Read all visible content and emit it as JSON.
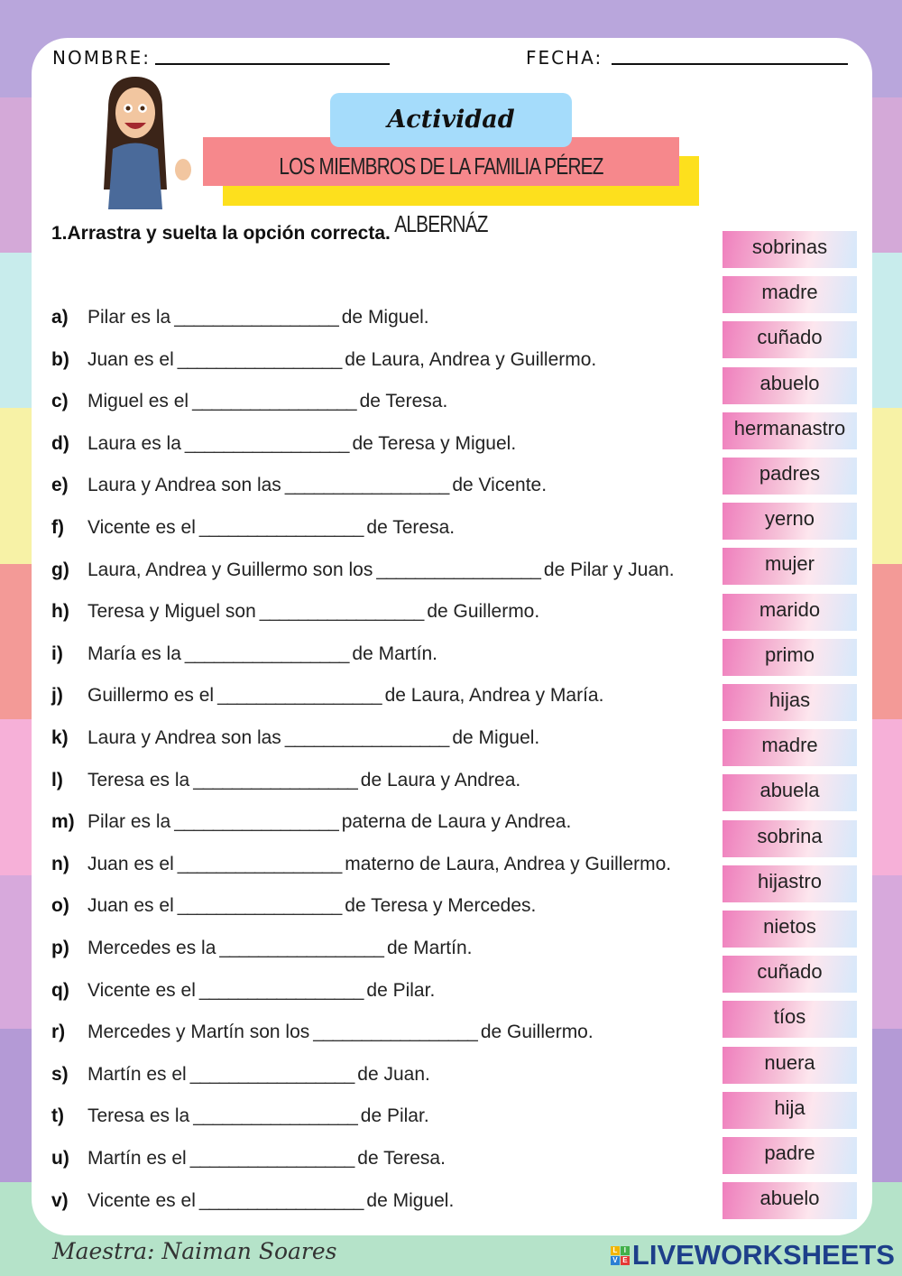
{
  "header": {
    "name_label": "NOMBRE:",
    "date_label": "FECHA:"
  },
  "title": {
    "badge": "Actividad",
    "main": "LOS MIEMBROS DE LA FAMILIA PÉREZ ALBERNÁZ"
  },
  "instruction": "1.Arrastra y suelta la opción correcta.",
  "blank": "_________________",
  "questions": [
    {
      "letter": "a)",
      "before": "Pilar es la",
      "after": "de Miguel."
    },
    {
      "letter": "b)",
      "before": "Juan es el",
      "after": "de Laura, Andrea y Guillermo."
    },
    {
      "letter": "c)",
      "before": "Miguel es el",
      "after": "de Teresa."
    },
    {
      "letter": "d)",
      "before": "Laura es la",
      "after": "de Teresa y Miguel."
    },
    {
      "letter": "e)",
      "before": "Laura y Andrea son las",
      "after": "de Vicente."
    },
    {
      "letter": "f)",
      "before": "Vicente es el",
      "after": "de Teresa."
    },
    {
      "letter": "g)",
      "before": "Laura, Andrea y Guillermo son los",
      "after": "de Pilar y Juan."
    },
    {
      "letter": "h)",
      "before": "Teresa y Miguel son",
      "after": "de Guillermo."
    },
    {
      "letter": "i)",
      "before": "María es la",
      "after": "de Martín."
    },
    {
      "letter": "j)",
      "before": "Guillermo es el",
      "after": "de Laura, Andrea y María."
    },
    {
      "letter": "k)",
      "before": "Laura y Andrea son las",
      "after": "de Miguel."
    },
    {
      "letter": "l)",
      "before": "Teresa es la",
      "after": "de Laura y Andrea."
    },
    {
      "letter": "m)",
      "before": "Pilar es la",
      "after": "paterna de Laura y Andrea."
    },
    {
      "letter": "n)",
      "before": "Juan es el",
      "after": "materno de Laura, Andrea y Guillermo."
    },
    {
      "letter": "o)",
      "before": "Juan es el",
      "after": "de Teresa y Mercedes."
    },
    {
      "letter": "p)",
      "before": "Mercedes es la",
      "after": "de Martín."
    },
    {
      "letter": "q)",
      "before": "Vicente es el",
      "after": "de Pilar."
    },
    {
      "letter": "r)",
      "before": "Mercedes y Martín son los",
      "after": "de Guillermo."
    },
    {
      "letter": "s)",
      "before": "Martín es el",
      "after": "de Juan."
    },
    {
      "letter": "t)",
      "before": "Teresa es la",
      "after": "de Pilar."
    },
    {
      "letter": "u)",
      "before": "Martín es el",
      "after": "de Teresa."
    },
    {
      "letter": "v)",
      "before": "Vicente es el",
      "after": "de Miguel."
    }
  ],
  "options": [
    "sobrinas",
    "madre",
    "cuñado",
    "abuelo",
    "hermanastro",
    "padres",
    "yerno",
    "mujer",
    "marido",
    "primo",
    "hijas",
    "madre",
    "abuela",
    "sobrina",
    "hijastro",
    "nietos",
    "cuñado",
    "tíos",
    "nuera",
    "hija",
    "padre",
    "abuelo"
  ],
  "footer": {
    "teacher": "Maestra: Naiman Soares",
    "brand": "LIVEWORKSHEETS",
    "logo_letters": [
      "L",
      "I",
      "V",
      "E"
    ]
  }
}
